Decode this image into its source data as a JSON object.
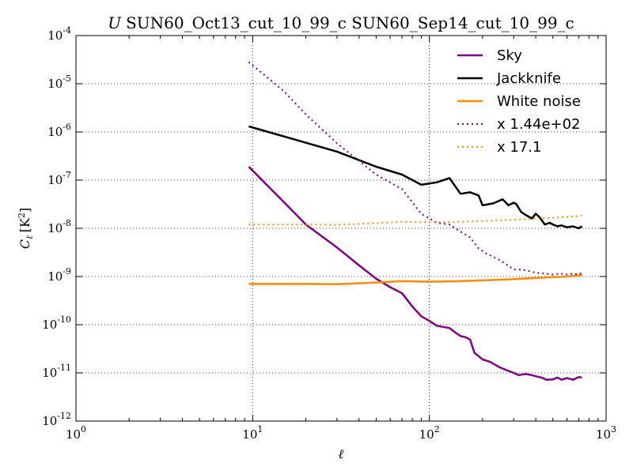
{
  "chart_data": {
    "type": "line",
    "title": "SUN60_Oct13_cut_10_99_c SUN60_Sep14_cut_10_99_c",
    "title_prefix": "U",
    "xlabel": "ℓ",
    "ylabel": "C",
    "ylabel_sub": "ℓ",
    "ylabel_unit": "[K",
    "ylabel_unit_exp": "2",
    "ylabel_unit_close": "]",
    "xscale": "log",
    "yscale": "log",
    "xlim": [
      1,
      1000
    ],
    "ylim": [
      1e-12,
      0.0001
    ],
    "grid": true,
    "legend_position": "top-right",
    "x_ticks": [
      {
        "base": "10",
        "exp": "0",
        "value": 1
      },
      {
        "base": "10",
        "exp": "1",
        "value": 10
      },
      {
        "base": "10",
        "exp": "2",
        "value": 100
      },
      {
        "base": "10",
        "exp": "3",
        "value": 1000
      }
    ],
    "y_ticks": [
      {
        "base": "10",
        "exp": "-12",
        "value": 1e-12
      },
      {
        "base": "10",
        "exp": "-11",
        "value": 1e-11
      },
      {
        "base": "10",
        "exp": "-10",
        "value": 1e-10
      },
      {
        "base": "10",
        "exp": "-9",
        "value": 1e-09
      },
      {
        "base": "10",
        "exp": "-8",
        "value": 1e-08
      },
      {
        "base": "10",
        "exp": "-7",
        "value": 1e-07
      },
      {
        "base": "10",
        "exp": "-6",
        "value": 1e-06
      },
      {
        "base": "10",
        "exp": "-5",
        "value": 1e-05
      },
      {
        "base": "10",
        "exp": "-4",
        "value": 0.0001
      }
    ],
    "series": [
      {
        "name": "Sky",
        "color": "#800080",
        "style": "solid",
        "legend": true,
        "x": [
          9.5,
          15,
          20,
          30,
          40,
          50,
          60,
          70,
          80,
          90,
          100,
          110,
          120,
          130,
          140,
          150,
          160,
          170,
          180,
          200,
          220,
          250,
          280,
          300,
          320,
          350,
          380,
          400,
          430,
          460,
          500,
          530,
          560,
          600,
          650,
          700,
          730
        ],
        "y": [
          1.9e-07,
          3.5e-08,
          1.2e-08,
          4e-09,
          1.7e-09,
          9e-10,
          6e-10,
          4.5e-10,
          2.4e-10,
          1.5e-10,
          1.2e-10,
          9.5e-11,
          9e-11,
          8.5e-11,
          6.9e-11,
          5.8e-11,
          5.5e-11,
          4.9e-11,
          2.6e-11,
          1.9e-11,
          1.7e-11,
          1.3e-11,
          1.1e-11,
          1e-11,
          9e-12,
          9.5e-12,
          9e-12,
          8.5e-12,
          8e-12,
          7.2e-12,
          7.3e-12,
          8e-12,
          7.2e-12,
          7.8e-12,
          7.2e-12,
          8.2e-12,
          8e-12
        ]
      },
      {
        "name": "Jackknife",
        "color": "#000000",
        "style": "solid",
        "legend": true,
        "x": [
          9.5,
          30,
          50,
          70,
          90,
          110,
          130,
          150,
          170,
          190,
          200,
          230,
          260,
          280,
          300,
          310,
          330,
          350,
          380,
          400,
          420,
          450,
          480,
          500,
          530,
          560,
          600,
          650,
          700,
          730
        ],
        "y": [
          1.3e-06,
          3.9e-07,
          1.9e-07,
          1.3e-07,
          8e-08,
          9e-08,
          1.1e-07,
          5.2e-08,
          5.6e-08,
          4.8e-08,
          3e-08,
          3.3e-08,
          4e-08,
          3e-08,
          3.4e-08,
          3.2e-08,
          2.2e-08,
          1.9e-08,
          1.6e-08,
          2e-08,
          1.7e-08,
          1.2e-08,
          1.3e-08,
          1.2e-08,
          1.1e-08,
          1.15e-08,
          1.05e-08,
          1.1e-08,
          1e-08,
          1.1e-08
        ]
      },
      {
        "name": "White noise",
        "color": "#ff8c00",
        "style": "solid",
        "legend": true,
        "x": [
          9.5,
          20,
          30,
          50,
          70,
          100,
          150,
          200,
          300,
          400,
          500,
          600,
          700,
          730
        ],
        "y": [
          7e-10,
          7e-10,
          6.9e-10,
          7.5e-10,
          8e-10,
          7.8e-10,
          8e-10,
          8.3e-10,
          8.8e-10,
          9.3e-10,
          9.7e-10,
          1e-09,
          1.05e-09,
          1.1e-09
        ]
      },
      {
        "name": "x 1.44e+02",
        "color": "#800080",
        "style": "dotted",
        "legend": true,
        "x": [
          9.5,
          15,
          20,
          30,
          40,
          50,
          60,
          70,
          80,
          90,
          100,
          110,
          130,
          150,
          170,
          190,
          210,
          250,
          300,
          320,
          350,
          400,
          450,
          500,
          550,
          600,
          650,
          700,
          730
        ],
        "y": [
          2.8e-05,
          7e-06,
          2.3e-06,
          5.8e-07,
          2.5e-07,
          1.3e-07,
          9e-08,
          6.5e-08,
          3.5e-08,
          2e-08,
          1.6e-08,
          1.3e-08,
          1.2e-08,
          8.5e-09,
          6.5e-09,
          3.8e-09,
          3e-09,
          2.2e-09,
          1.4e-09,
          1.4e-09,
          1.35e-09,
          1.2e-09,
          1.15e-09,
          1.1e-09,
          1.15e-09,
          1.1e-09,
          1.15e-09,
          1.1e-09,
          1.2e-09
        ]
      },
      {
        "name": "x 17.1",
        "color": "#ff8c00",
        "style": "dotted",
        "legend": true,
        "x": [
          9.5,
          20,
          30,
          50,
          70,
          100,
          150,
          200,
          300,
          400,
          500,
          600,
          700,
          730
        ],
        "y": [
          1.2e-08,
          1.2e-08,
          1.18e-08,
          1.28e-08,
          1.37e-08,
          1.33e-08,
          1.37e-08,
          1.42e-08,
          1.5e-08,
          1.59e-08,
          1.66e-08,
          1.71e-08,
          1.8e-08,
          1.88e-08
        ]
      }
    ]
  }
}
